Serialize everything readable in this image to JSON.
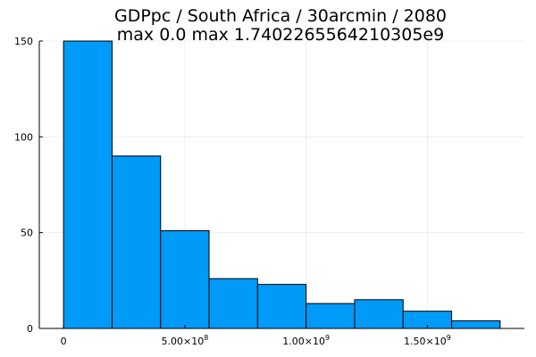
{
  "chart_data": {
    "type": "bar",
    "title_lines": [
      "GDPpc / South Africa / 30arcmin / 2080",
      "max 0.0  max 1.7402265564210305e9"
    ],
    "xlabel": "",
    "ylabel": "",
    "bins": [
      {
        "x0": 0,
        "x1": 200000000,
        "count": 150
      },
      {
        "x0": 200000000,
        "x1": 400000000,
        "count": 90
      },
      {
        "x0": 400000000,
        "x1": 600000000,
        "count": 51
      },
      {
        "x0": 600000000,
        "x1": 800000000,
        "count": 26
      },
      {
        "x0": 800000000,
        "x1": 1000000000,
        "count": 23
      },
      {
        "x0": 1000000000,
        "x1": 1200000000,
        "count": 13
      },
      {
        "x0": 1200000000,
        "x1": 1400000000,
        "count": 15
      },
      {
        "x0": 1400000000,
        "x1": 1600000000,
        "count": 9
      },
      {
        "x0": 1600000000,
        "x1": 1800000000,
        "count": 4
      }
    ],
    "xlim": [
      -100000000,
      1900000000
    ],
    "ylim": [
      0,
      150
    ],
    "x_ticks": [
      {
        "value": 0,
        "mantissa": "0",
        "exponent": ""
      },
      {
        "value": 500000000,
        "mantissa": "5.00×10",
        "exponent": "8"
      },
      {
        "value": 1000000000,
        "mantissa": "1.00×10",
        "exponent": "9"
      },
      {
        "value": 1500000000,
        "mantissa": "1.50×10",
        "exponent": "9"
      }
    ],
    "y_ticks": [
      0,
      50,
      100,
      150
    ],
    "y_tick_labels": [
      "0",
      "50",
      "100",
      "150"
    ],
    "grid": true,
    "legend": "none",
    "colors": {
      "bar_fill": "#009af9",
      "bar_stroke": "#000000"
    }
  }
}
